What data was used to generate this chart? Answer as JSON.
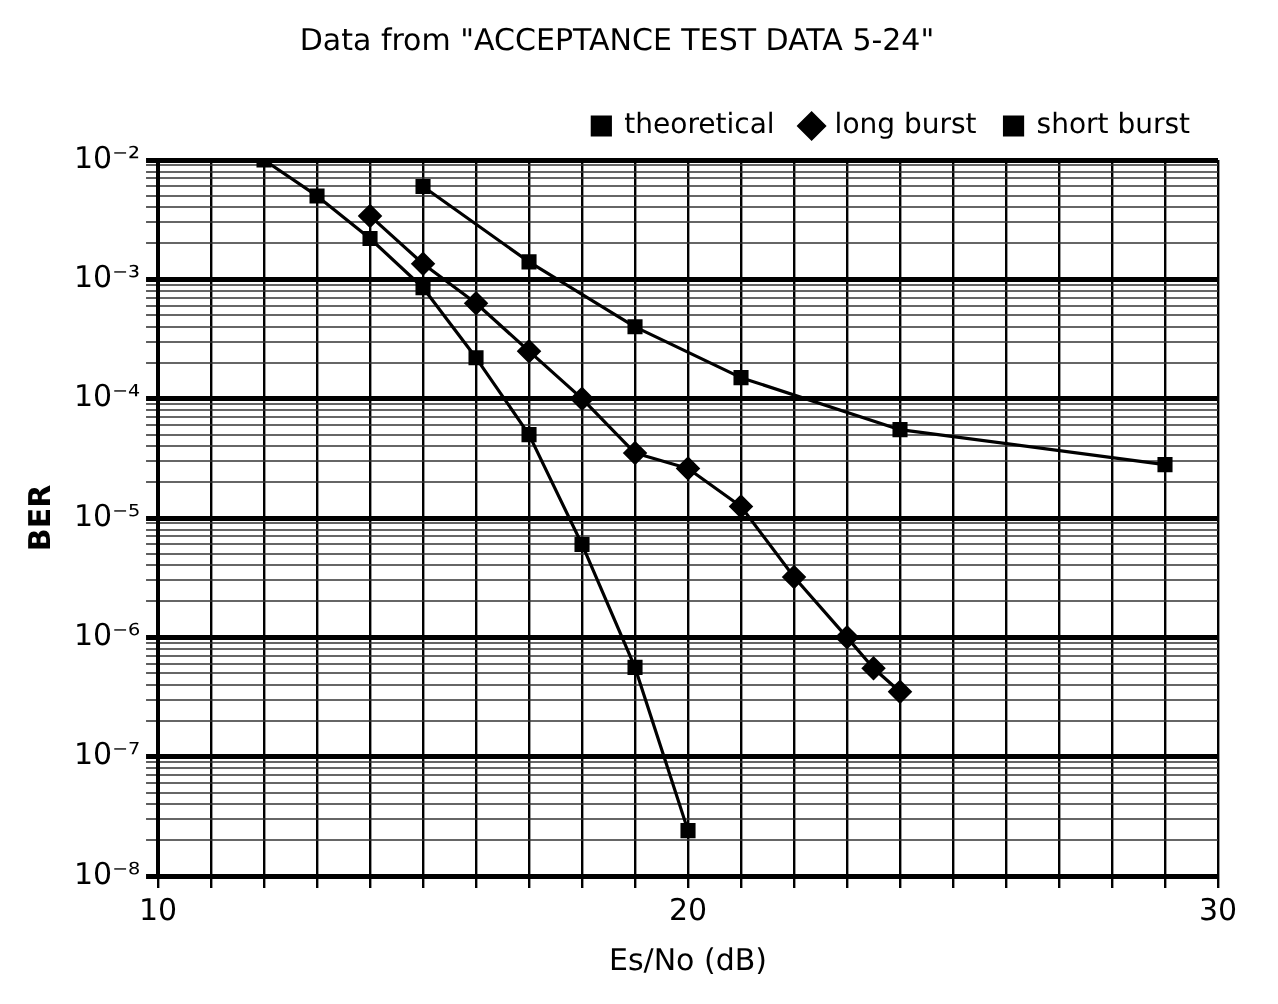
{
  "chart_data": {
    "type": "line",
    "title": "Data from \"ACCEPTANCE TEST DATA 5-24\"",
    "xlabel": "Es/No (dB)",
    "ylabel": "BER",
    "log": "y",
    "grid": true,
    "legend": "top right",
    "xlim": [
      10,
      30
    ],
    "ylim": [
      1e-08,
      0.01
    ],
    "xticks": [
      10,
      {
        "value": 11,
        "label": null
      },
      {
        "value": 12,
        "label": null
      },
      {
        "value": 13,
        "label": null
      },
      {
        "value": 14,
        "label": null
      },
      {
        "value": 15,
        "label": null
      },
      {
        "value": 16,
        "label": null
      },
      {
        "value": 17,
        "label": null
      },
      {
        "value": 18,
        "label": null
      },
      {
        "value": 19,
        "label": null
      },
      20,
      {
        "value": 21,
        "label": null
      },
      {
        "value": 22,
        "label": null
      },
      {
        "value": 23,
        "label": null
      },
      {
        "value": 24,
        "label": null
      },
      {
        "value": 25,
        "label": null
      },
      {
        "value": 26,
        "label": null
      },
      {
        "value": 27,
        "label": null
      },
      {
        "value": 28,
        "label": null
      },
      {
        "value": 29,
        "label": null
      },
      30
    ],
    "yticks": [
      {
        "value": 1e-08,
        "label": "10⁻⁸"
      },
      {
        "value": 2e-08,
        "label": null
      },
      {
        "value": 3e-08,
        "label": null
      },
      {
        "value": 4e-08,
        "label": null
      },
      {
        "value": 5e-08,
        "label": null
      },
      {
        "value": 6e-08,
        "label": null
      },
      {
        "value": 7e-08,
        "label": null
      },
      {
        "value": 8e-08,
        "label": null
      },
      {
        "value": 9e-08,
        "label": null
      },
      {
        "value": 1e-07,
        "label": "10⁻⁷"
      },
      {
        "value": 2e-07,
        "label": null
      },
      {
        "value": 3e-07,
        "label": null
      },
      {
        "value": 4e-07,
        "label": null
      },
      {
        "value": 5e-07,
        "label": null
      },
      {
        "value": 6e-07,
        "label": null
      },
      {
        "value": 7e-07,
        "label": null
      },
      {
        "value": 8e-07,
        "label": null
      },
      {
        "value": 9e-07,
        "label": null
      },
      {
        "value": 1e-06,
        "label": "10⁻⁶"
      },
      {
        "value": 2e-06,
        "label": null
      },
      {
        "value": 3e-06,
        "label": null
      },
      {
        "value": 4e-06,
        "label": null
      },
      {
        "value": 5e-06,
        "label": null
      },
      {
        "value": 6e-06,
        "label": null
      },
      {
        "value": 7e-06,
        "label": null
      },
      {
        "value": 8e-06,
        "label": null
      },
      {
        "value": 9e-06,
        "label": null
      },
      {
        "value": 1e-05,
        "label": "10⁻⁵"
      },
      {
        "value": 2e-05,
        "label": null
      },
      {
        "value": 3e-05,
        "label": null
      },
      {
        "value": 4e-05,
        "label": null
      },
      {
        "value": 5e-05,
        "label": null
      },
      {
        "value": 6e-05,
        "label": null
      },
      {
        "value": 7e-05,
        "label": null
      },
      {
        "value": 8e-05,
        "label": null
      },
      {
        "value": 9e-05,
        "label": null
      },
      {
        "value": 0.0001,
        "label": "10⁻⁴"
      },
      {
        "value": 0.0002,
        "label": null
      },
      {
        "value": 0.0003,
        "label": null
      },
      {
        "value": 0.0004,
        "label": null
      },
      {
        "value": 0.0005,
        "label": null
      },
      {
        "value": 0.0006,
        "label": null
      },
      {
        "value": 0.0007,
        "label": null
      },
      {
        "value": 0.0008,
        "label": null
      },
      {
        "value": 0.0009,
        "label": null
      },
      {
        "value": 0.001,
        "label": "10⁻³"
      },
      {
        "value": 0.002,
        "label": null
      },
      {
        "value": 0.003,
        "label": null
      },
      {
        "value": 0.004,
        "label": null
      },
      {
        "value": 0.005,
        "label": null
      },
      {
        "value": 0.006,
        "label": null
      },
      {
        "value": 0.007,
        "label": null
      },
      {
        "value": 0.008,
        "label": null
      },
      {
        "value": 0.009,
        "label": null
      },
      {
        "value": 0.01,
        "label": "10⁻²"
      }
    ],
    "series": [
      {
        "name": "theoretical",
        "color": "#000000",
        "marker": "square",
        "x": [
          12,
          13,
          14,
          15,
          16,
          17,
          18,
          19,
          20
        ],
        "values": [
          0.01,
          0.005,
          0.0022,
          0.00085,
          0.00022,
          5e-05,
          6e-06,
          5.6e-07,
          2.4e-08
        ]
      },
      {
        "name": "long burst",
        "color": "#000000",
        "marker": "diamond",
        "x": [
          14,
          15,
          16,
          17,
          18,
          19,
          20,
          21,
          22,
          23,
          23.5,
          24
        ],
        "values": [
          0.0034,
          0.00135,
          0.00063,
          0.00025,
          0.0001,
          3.5e-05,
          2.6e-05,
          1.25e-05,
          3.2e-06,
          1e-06,
          5.5e-07,
          3.5e-07
        ]
      },
      {
        "name": "short burst",
        "color": "#000000",
        "marker": "square",
        "x": [
          15,
          17,
          19,
          21,
          24,
          29
        ],
        "values": [
          0.006,
          0.0014,
          0.0004,
          0.00015,
          5.5e-05,
          2.8e-05
        ]
      }
    ]
  }
}
